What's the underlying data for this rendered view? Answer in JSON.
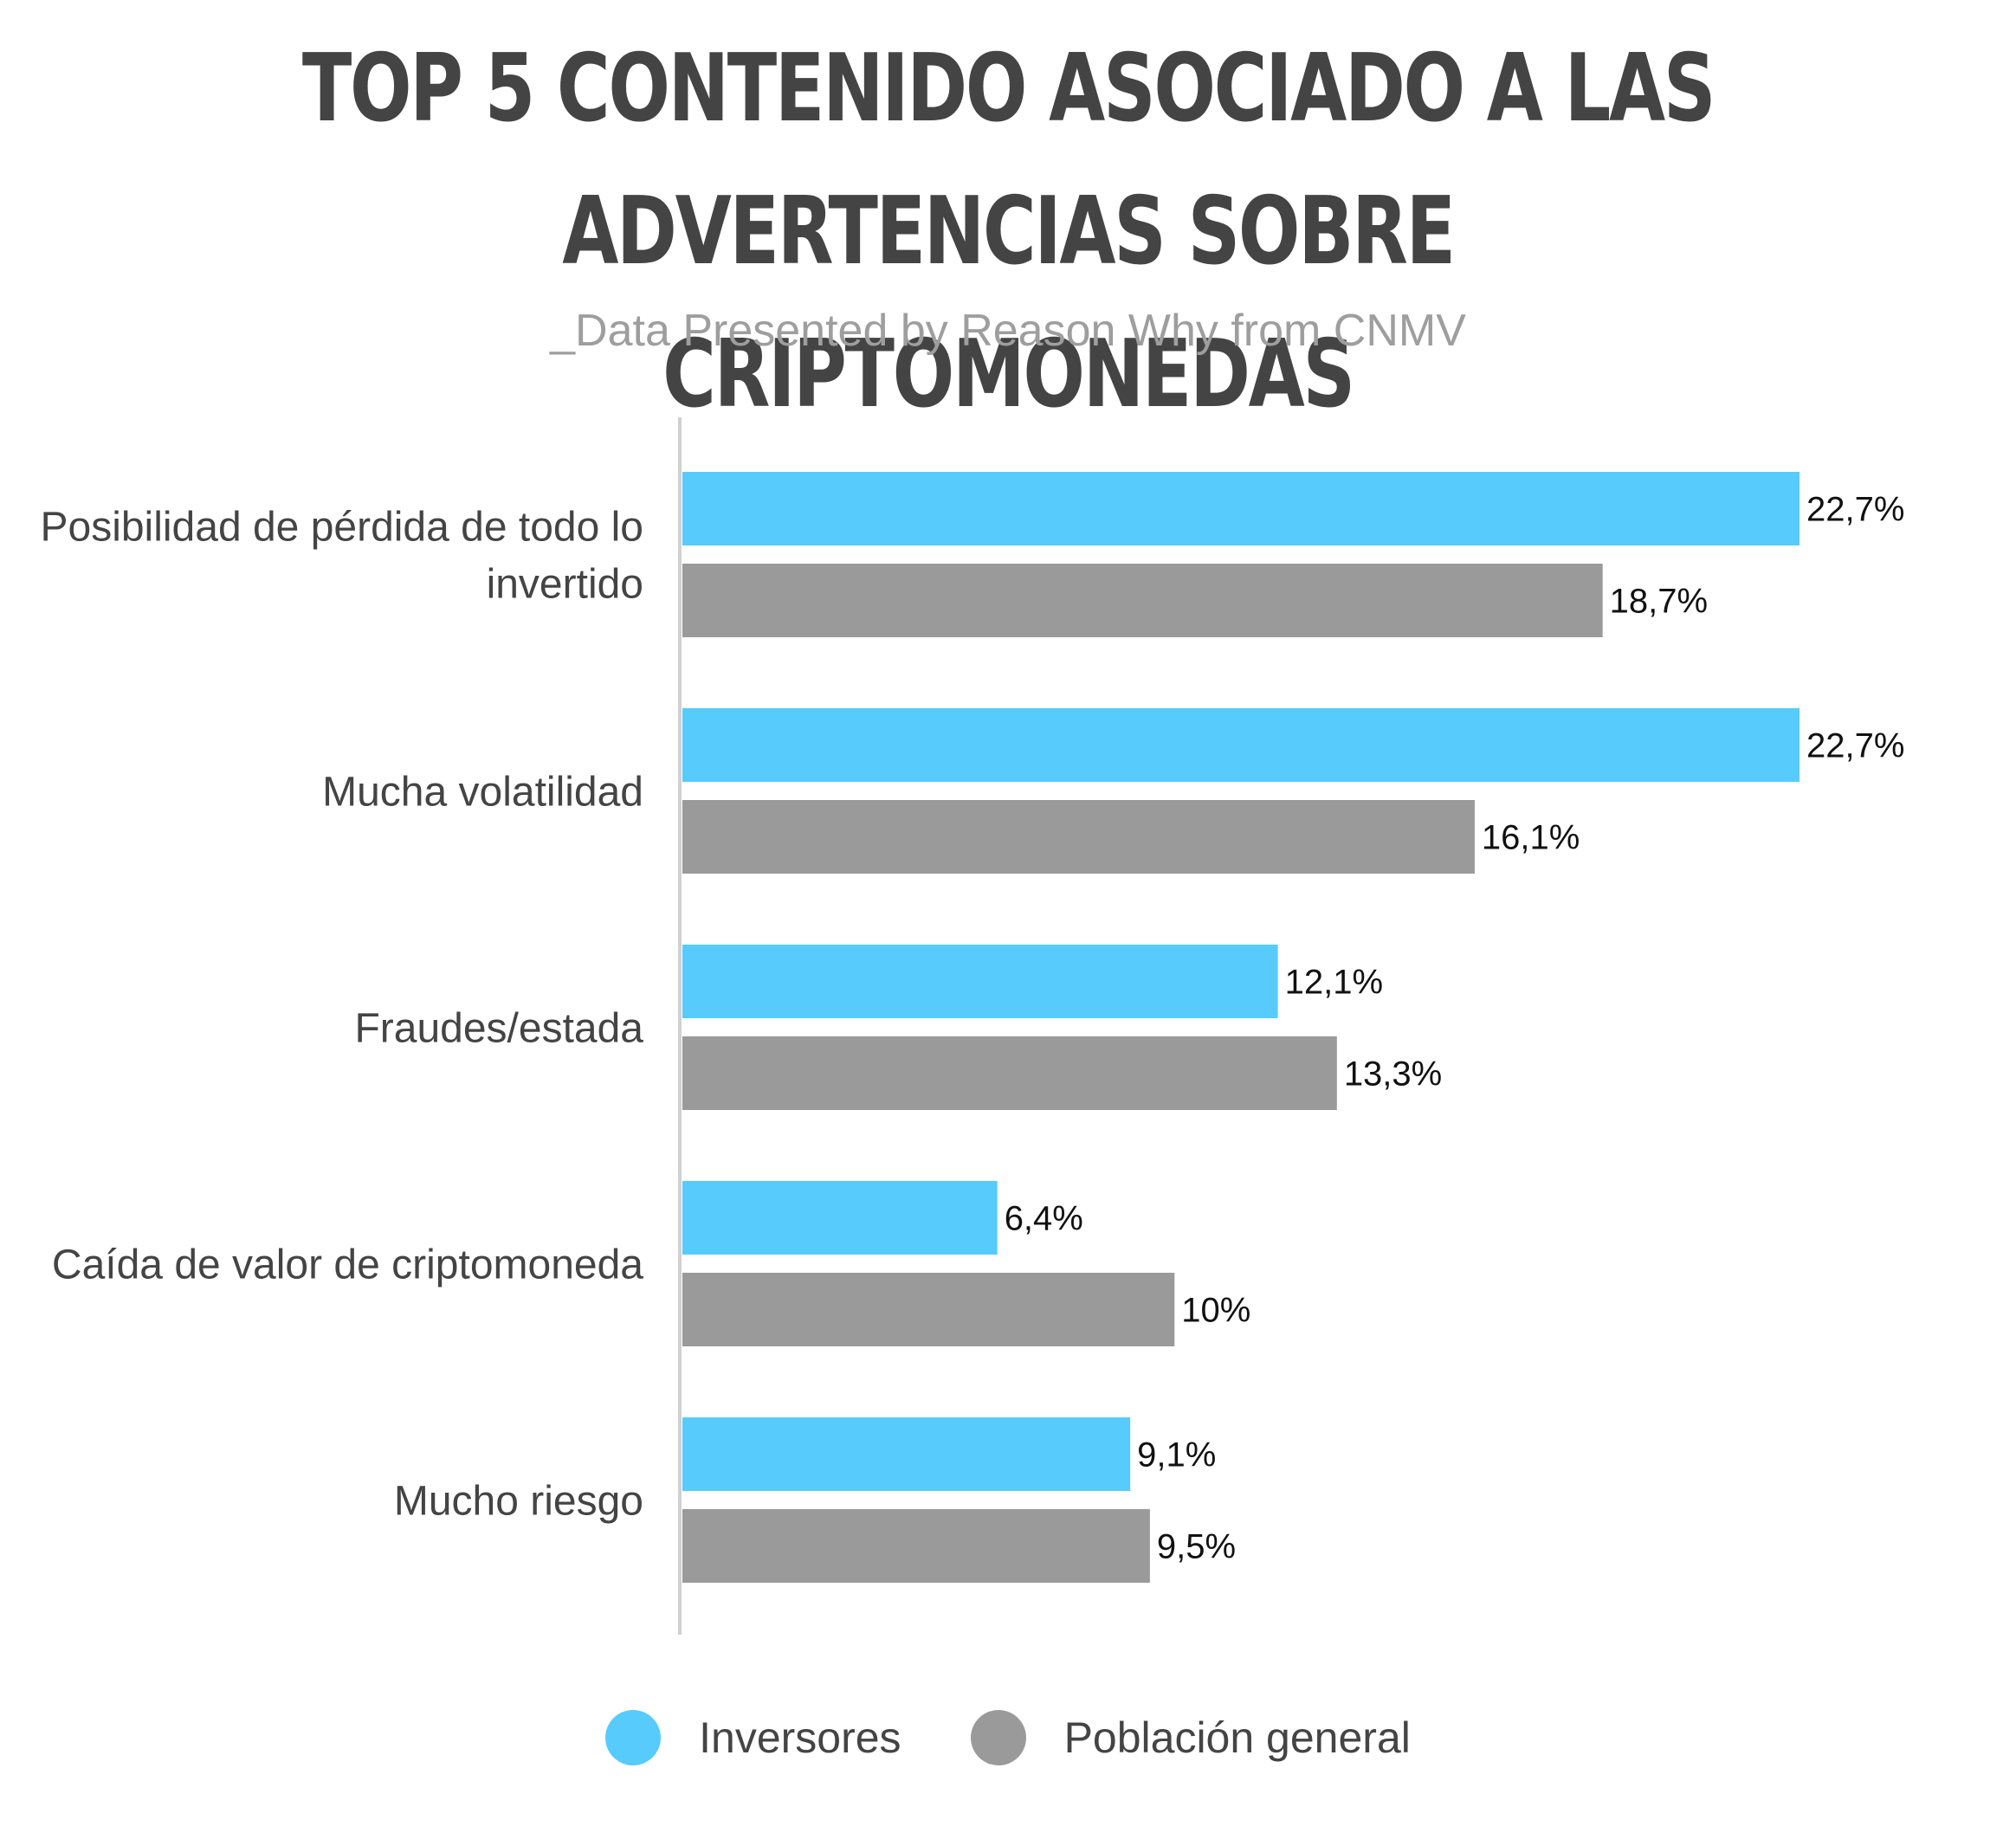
{
  "chart_data": {
    "type": "bar",
    "orientation": "horizontal",
    "title_lines": [
      "TOP 5 CONTENIDO ASOCIADO A LAS",
      "ADVERTENCIAS SOBRE CRIPTOMONEDAS"
    ],
    "subtitle": "_Data Presented by Reason Why from CNMV",
    "categories": [
      [
        "Posibilidad de pérdida de todo lo",
        "invertido"
      ],
      [
        "Mucha volatilidad"
      ],
      [
        "Fraudes/estada"
      ],
      [
        "Caída de valor de criptomoneda"
      ],
      [
        "Mucho riesgo"
      ]
    ],
    "series": [
      {
        "name": "Inversores",
        "color": "#56cbfc",
        "values": [
          22.7,
          22.7,
          12.1,
          6.4,
          9.1
        ],
        "labels": [
          "22,7%",
          "22,7%",
          "12,1%",
          "6,4%",
          "9,1%"
        ]
      },
      {
        "name": "Población general",
        "color": "#9a9a9a",
        "values": [
          18.7,
          16.1,
          13.3,
          10,
          9.5
        ],
        "labels": [
          "18,7%",
          "16,1%",
          "13,3%",
          "10%",
          "9,5%"
        ]
      }
    ],
    "legend_position": "bottom-center",
    "grid": false
  }
}
